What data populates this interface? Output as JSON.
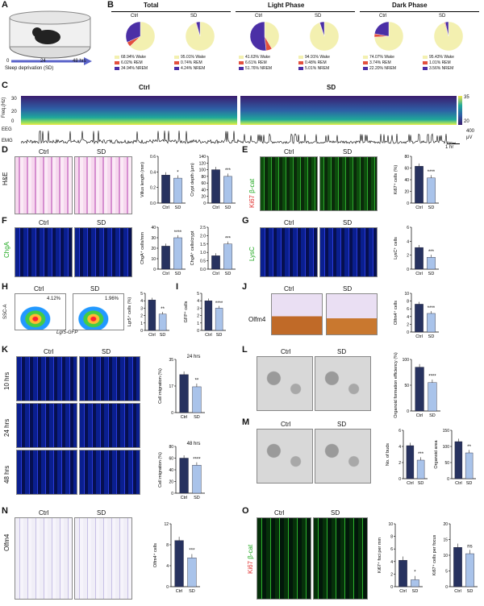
{
  "panels": {
    "A": {
      "letter": "A",
      "axis_ticks": [
        "0",
        "24",
        "48 hrs"
      ],
      "axis_label": "Sleep deprivation (SD)"
    },
    "B": {
      "letter": "B",
      "groups": [
        {
          "title": "Total",
          "ctrl": "Ctrl",
          "sd": "SD",
          "ctrl_legend": [
            "68.94% Wake",
            "6.02% REM",
            "34.94% NREM"
          ],
          "sd_legend": [
            "95.01% Wake",
            "0.74% REM",
            "4.24% NREM"
          ],
          "ctrl_pct": [
            68.94,
            6.02,
            34.94
          ],
          "sd_pct": [
            95.01,
            0.74,
            4.24
          ]
        },
        {
          "title": "Light Phase",
          "ctrl": "Ctrl",
          "sd": "SD",
          "ctrl_legend": [
            "41.63% Wake",
            "6.61% REM",
            "51.76% NREM"
          ],
          "sd_legend": [
            "94.91% Wake",
            "0.48% REM",
            "5.01% NREM"
          ],
          "ctrl_pct": [
            41.63,
            6.61,
            51.76
          ],
          "sd_pct": [
            94.91,
            0.48,
            5.01
          ]
        },
        {
          "title": "Dark Phase",
          "ctrl": "Ctrl",
          "sd": "SD",
          "ctrl_legend": [
            "74.07% Wake",
            "3.74% REM",
            "22.20% NREM"
          ],
          "sd_legend": [
            "95.43% Wake",
            "1.01% REM",
            "3.56% NREM"
          ],
          "ctrl_pct": [
            74.07,
            3.74,
            22.2
          ],
          "sd_pct": [
            95.43,
            1.01,
            3.56
          ]
        }
      ],
      "colors": {
        "wake": "#f3f0b0",
        "rem": "#e3503e",
        "nrem": "#4b2fa6"
      }
    },
    "C": {
      "letter": "C",
      "ctrl": "Ctrl",
      "sd": "SD",
      "freq": "Freq.(Hz)",
      "eeg": "EEG",
      "emg": "EMG",
      "y_ticks": [
        "30",
        "20",
        "0"
      ],
      "cb_ticks": [
        "35",
        "20"
      ],
      "emg_scale": "400",
      "emg_unit": "μV",
      "time_bar": "1 hr"
    },
    "D": {
      "letter": "D",
      "stain": "H&E",
      "ctrl": "Ctrl",
      "sd": "SD"
    },
    "E": {
      "letter": "E",
      "marker1": "Ki67",
      "marker2": "β-cat",
      "ctrl": "Ctrl",
      "sd": "SD"
    },
    "F": {
      "letter": "F",
      "marker": "ChgA",
      "ctrl": "Ctrl",
      "sd": "SD"
    },
    "G": {
      "letter": "G",
      "marker": "LysC",
      "ctrl": "Ctrl",
      "sd": "SD"
    },
    "H": {
      "letter": "H",
      "ctrl": "Ctrl",
      "sd": "SD",
      "ctrl_pct": "4.12%",
      "sd_pct": "1.96%",
      "ylab": "SSC-A",
      "xlab": "Lgr5-GFP"
    },
    "I": {
      "letter": "I"
    },
    "J": {
      "letter": "J",
      "marker": "Olfm4",
      "ctrl": "Ctrl",
      "sd": "SD"
    },
    "K": {
      "letter": "K",
      "ctrl": "Ctrl",
      "sd": "SD",
      "rows": [
        "10 hrs",
        "24 hrs",
        "48 hrs"
      ]
    },
    "L": {
      "letter": "L",
      "ctrl": "Ctrl",
      "sd": "SD"
    },
    "M": {
      "letter": "M",
      "ctrl": "Ctrl",
      "sd": "SD"
    },
    "N": {
      "letter": "N",
      "marker": "Olfm4",
      "ctrl": "Ctrl",
      "sd": "SD"
    },
    "O": {
      "letter": "O",
      "marker1": "Ki67",
      "marker2": "β-cat",
      "ctrl": "Ctrl",
      "sd": "SD"
    }
  },
  "colors": {
    "ctrl_bar": "#27325f",
    "sd_bar": "#a9c3ea",
    "ki67": "#e0312f",
    "green": "#3bd13b"
  },
  "chart_data": [
    {
      "id": "D1",
      "type": "bar",
      "categories": [
        "Ctrl",
        "SD"
      ],
      "values": [
        0.36,
        0.32
      ],
      "ylabel": "Villus length (mm)",
      "ylim": [
        0,
        0.6
      ],
      "yticks": [
        "0.0",
        "0.2",
        "0.4",
        "0.6"
      ],
      "sig": "*"
    },
    {
      "id": "D2",
      "type": "bar",
      "categories": [
        "Ctrl",
        "SD"
      ],
      "values": [
        100,
        80
      ],
      "ylabel": "Crypt depth (μm)",
      "ylim": [
        0,
        140
      ],
      "yticks": [
        "0",
        "20",
        "40",
        "60",
        "80",
        "100",
        "120",
        "140"
      ],
      "sig": "***"
    },
    {
      "id": "E1",
      "type": "bar",
      "categories": [
        "Ctrl",
        "SD"
      ],
      "values": [
        63,
        43
      ],
      "ylabel": "Ki67⁺ cells (%)",
      "ylim": [
        0,
        80
      ],
      "yticks": [
        "0",
        "20",
        "40",
        "60",
        "80"
      ],
      "sig": "****"
    },
    {
      "id": "F1",
      "type": "bar",
      "categories": [
        "Ctrl",
        "SD"
      ],
      "values": [
        22,
        30
      ],
      "ylabel": "ChgA⁺ cells/mm",
      "ylim": [
        0,
        40
      ],
      "yticks": [
        "0",
        "10",
        "20",
        "30",
        "40"
      ],
      "sig": "****"
    },
    {
      "id": "F2",
      "type": "bar",
      "categories": [
        "Ctrl",
        "SD"
      ],
      "values": [
        0.8,
        1.5
      ],
      "ylabel": "ChgA⁺ cells/crypt",
      "ylim": [
        0,
        2.5
      ],
      "yticks": [
        "0.0",
        "0.5",
        "1.0",
        "1.5",
        "2.0",
        "2.5"
      ],
      "sig": "***"
    },
    {
      "id": "G1",
      "type": "bar",
      "categories": [
        "Ctrl",
        "SD"
      ],
      "values": [
        3.1,
        1.7
      ],
      "ylabel": "LysC⁺ cells",
      "ylim": [
        0,
        6
      ],
      "yticks": [
        "0",
        "2",
        "4",
        "6"
      ],
      "sig": "***"
    },
    {
      "id": "H1",
      "type": "bar",
      "categories": [
        "Ctrl",
        "SD"
      ],
      "values": [
        4.1,
        2.2
      ],
      "ylabel": "Lgr5⁺ cells (%)",
      "ylim": [
        0,
        5
      ],
      "yticks": [
        "0",
        "1",
        "2",
        "3",
        "4",
        "5"
      ],
      "sig": "**"
    },
    {
      "id": "I1",
      "type": "bar",
      "categories": [
        "Ctrl",
        "SD"
      ],
      "values": [
        4.0,
        3.0
      ],
      "ylabel": "GFP⁺ cells",
      "ylim": [
        0,
        5
      ],
      "yticks": [
        "0",
        "1",
        "2",
        "3",
        "4",
        "5"
      ],
      "sig": "****"
    },
    {
      "id": "J1",
      "type": "bar",
      "categories": [
        "Ctrl",
        "SD"
      ],
      "values": [
        7.2,
        4.8
      ],
      "ylabel": "Olfm4⁺ cells",
      "ylim": [
        0,
        10
      ],
      "yticks": [
        "0",
        "2",
        "4",
        "6",
        "8",
        "10"
      ],
      "sig": "****"
    },
    {
      "id": "K1",
      "type": "bar",
      "categories": [
        "Ctrl",
        "SD"
      ],
      "values": [
        25,
        17
      ],
      "ylabel": "Cell migration (%)",
      "title": "24 hrs",
      "ylim": [
        0,
        35
      ],
      "yticks": [
        "0",
        "17",
        "35"
      ],
      "sig": "**"
    },
    {
      "id": "K2",
      "type": "bar",
      "categories": [
        "Ctrl",
        "SD"
      ],
      "values": [
        60,
        48
      ],
      "ylabel": "Cell migration (%)",
      "title": "48 hrs",
      "ylim": [
        0,
        80
      ],
      "yticks": [
        "0",
        "20",
        "40",
        "60",
        "80"
      ],
      "sig": "****"
    },
    {
      "id": "L1",
      "type": "bar",
      "categories": [
        "Ctrl",
        "SD"
      ],
      "values": [
        85,
        55
      ],
      "ylabel": "Organoid formation efficiency (%)",
      "ylim": [
        0,
        100
      ],
      "yticks": [
        "0",
        "50",
        "100"
      ],
      "sig": "****"
    },
    {
      "id": "M1",
      "type": "bar",
      "categories": [
        "Ctrl",
        "SD"
      ],
      "values": [
        4.1,
        2.3
      ],
      "ylabel": "No. of buds",
      "ylim": [
        0,
        6
      ],
      "yticks": [
        "0",
        "2",
        "4",
        "6"
      ],
      "sig": "***"
    },
    {
      "id": "M2",
      "type": "bar",
      "categories": [
        "Ctrl",
        "SD"
      ],
      "values": [
        115,
        80
      ],
      "ylabel": "Organoid area",
      "ylim": [
        0,
        150
      ],
      "yticks": [
        "0",
        "50",
        "100",
        "150"
      ],
      "sig": "**"
    },
    {
      "id": "N1",
      "type": "bar",
      "categories": [
        "Ctrl",
        "SD"
      ],
      "values": [
        8.8,
        5.5
      ],
      "ylabel": "Olfm4⁺ cells",
      "ylim": [
        0,
        12
      ],
      "yticks": [
        "0",
        "4",
        "8",
        "12"
      ],
      "sig": "***"
    },
    {
      "id": "O1",
      "type": "bar",
      "categories": [
        "Ctrl",
        "SD"
      ],
      "values": [
        4.2,
        1.1
      ],
      "ylabel": "Ki67⁺ foci per mm",
      "ylim": [
        0,
        10
      ],
      "yticks": [
        "0",
        "2",
        "4",
        "6",
        "8",
        "10"
      ],
      "sig": "*"
    },
    {
      "id": "O2",
      "type": "bar",
      "categories": [
        "Ctrl",
        "SD"
      ],
      "values": [
        12.5,
        10.5
      ],
      "ylabel": "Ki67⁺ cells per focus",
      "ylim": [
        0,
        20
      ],
      "yticks": [
        "0",
        "5",
        "10",
        "15",
        "20"
      ],
      "sig": "ns"
    }
  ]
}
